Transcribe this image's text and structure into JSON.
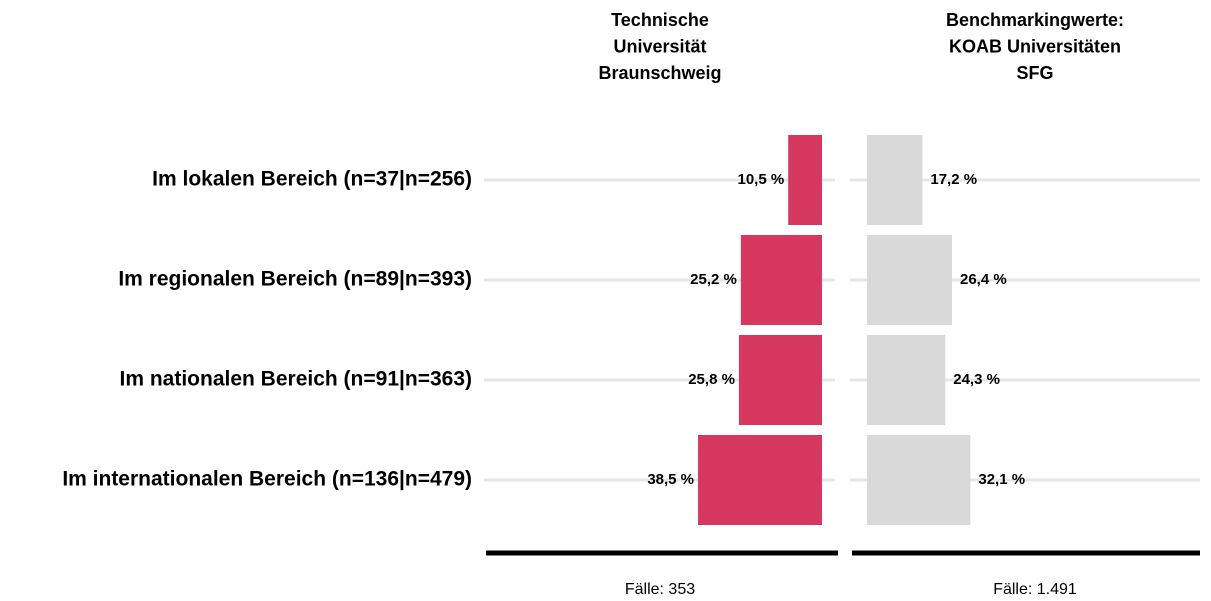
{
  "chart_data": {
    "type": "bar",
    "orientation": "horizontal",
    "categories": [
      "Im lokalen Bereich (n=37|n=256)",
      "Im regionalen Bereich (n=89|n=393)",
      "Im nationalen Bereich (n=91|n=363)",
      "Im internationalen Bereich (n=136|n=479)"
    ],
    "series": [
      {
        "name": [
          "Technische",
          "Universität",
          "Braunschweig"
        ],
        "color": "#d6345c",
        "direction": "left",
        "values": [
          10.5,
          25.2,
          25.8,
          38.5
        ],
        "value_labels": [
          "10,5 %",
          "25,2 %",
          "25,8 %",
          "38,5 %"
        ],
        "footer": "Fälle: 353"
      },
      {
        "name": [
          "Benchmarkingwerte:",
          "KOAB Universitäten",
          "SFG"
        ],
        "color": "#d9d9d9",
        "direction": "right",
        "values": [
          17.2,
          26.4,
          24.3,
          32.1
        ],
        "value_labels": [
          "17,2 %",
          "26,4 %",
          "24,3 %",
          "32,1 %"
        ],
        "footer": "Fälle: 1.491"
      }
    ]
  }
}
